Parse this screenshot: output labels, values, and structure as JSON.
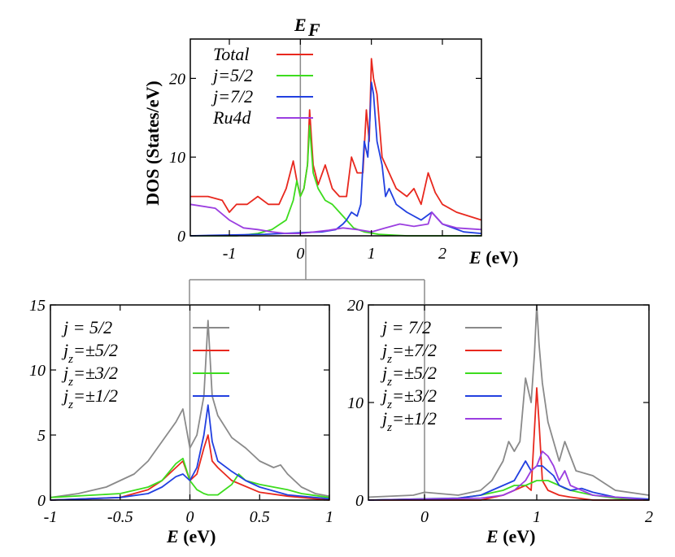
{
  "ef_label": "E",
  "ef_sub": "F",
  "chart_data": [
    {
      "type": "line",
      "xlabel": "E (eV)",
      "ylabel": "DOS (States/eV)",
      "xlim": [
        -1.55,
        2.55
      ],
      "ylim": [
        0,
        25
      ],
      "xticks": [
        "-1",
        "0",
        "1",
        "2"
      ],
      "yticks": [
        "0",
        "10",
        "20"
      ],
      "fermi_line": 0,
      "legend": "top-left",
      "series": [
        {
          "name": "Total",
          "color": "#e8281e",
          "x": [
            -1.55,
            -1.3,
            -1.1,
            -1.0,
            -0.9,
            -0.75,
            -0.6,
            -0.45,
            -0.3,
            -0.2,
            -0.1,
            -0.05,
            0.0,
            0.05,
            0.1,
            0.13,
            0.18,
            0.25,
            0.35,
            0.45,
            0.55,
            0.65,
            0.72,
            0.8,
            0.88,
            0.93,
            0.97,
            1.0,
            1.03,
            1.08,
            1.15,
            1.25,
            1.35,
            1.5,
            1.6,
            1.7,
            1.8,
            1.9,
            2.0,
            2.2,
            2.55
          ],
          "y": [
            5,
            5,
            4.5,
            3,
            4,
            4,
            5,
            4,
            4,
            6,
            9.5,
            7,
            5,
            6,
            9,
            16,
            9,
            6.5,
            9,
            6,
            5,
            5,
            10,
            8,
            8,
            16,
            12,
            22.5,
            20,
            18,
            10,
            8,
            6,
            5,
            6,
            4,
            8,
            5.5,
            4,
            3,
            2
          ]
        },
        {
          "name": "j=5/2",
          "color": "#3ddc1e",
          "x": [
            -1.55,
            -0.9,
            -0.6,
            -0.4,
            -0.2,
            -0.1,
            -0.05,
            0.0,
            0.05,
            0.1,
            0.13,
            0.18,
            0.25,
            0.35,
            0.45,
            0.55,
            0.65,
            0.75,
            0.9,
            1.1,
            1.5,
            2.55
          ],
          "y": [
            0,
            0,
            0.3,
            0.8,
            2,
            4.5,
            7,
            5,
            6,
            9,
            14,
            8,
            6,
            4.5,
            4,
            3,
            2,
            1,
            0.5,
            0.2,
            0,
            0
          ]
        },
        {
          "name": "j=7/2",
          "color": "#2240e0",
          "x": [
            -1.55,
            -0.5,
            0.0,
            0.3,
            0.5,
            0.6,
            0.65,
            0.72,
            0.8,
            0.85,
            0.9,
            0.95,
            0.98,
            1.0,
            1.03,
            1.08,
            1.15,
            1.2,
            1.25,
            1.35,
            1.5,
            1.7,
            1.85,
            2.0,
            2.3,
            2.55
          ],
          "y": [
            0,
            0.2,
            0.4,
            0.5,
            0.8,
            1.5,
            2,
            3,
            2.5,
            4,
            12,
            10,
            15,
            19.5,
            18,
            12,
            9,
            5,
            6,
            4,
            3,
            2,
            3,
            1.5,
            0.5,
            0.3
          ]
        },
        {
          "name": "Ru4d",
          "color": "#9b3ee0",
          "x": [
            -1.55,
            -1.2,
            -1.0,
            -0.8,
            -0.6,
            -0.4,
            -0.2,
            0.0,
            0.2,
            0.4,
            0.6,
            0.8,
            1.0,
            1.2,
            1.4,
            1.6,
            1.8,
            1.85,
            2.0,
            2.2,
            2.55
          ],
          "y": [
            4,
            3.5,
            2,
            1,
            0.8,
            0.5,
            0.3,
            0.3,
            0.5,
            0.7,
            1,
            0.8,
            0.5,
            1,
            1.5,
            1.2,
            1.5,
            3,
            1.5,
            1,
            0.8
          ]
        }
      ]
    },
    {
      "type": "line",
      "xlabel": "E (eV)",
      "xlim": [
        -1,
        1
      ],
      "ylim": [
        0,
        15
      ],
      "xticks": [
        "-1",
        "-0.5",
        "0",
        "0.5",
        "1"
      ],
      "yticks": [
        "0",
        "5",
        "10",
        "15"
      ],
      "fermi_line": 0,
      "legend": "top-left",
      "series": [
        {
          "name": "j = 5/2",
          "color": "#8a8a8a",
          "x": [
            -1,
            -0.8,
            -0.6,
            -0.4,
            -0.3,
            -0.2,
            -0.1,
            -0.05,
            0.0,
            0.05,
            0.1,
            0.13,
            0.16,
            0.2,
            0.3,
            0.4,
            0.5,
            0.6,
            0.65,
            0.7,
            0.8,
            0.9,
            1.0
          ],
          "y": [
            0.2,
            0.5,
            1,
            2,
            3,
            4.5,
            6,
            7,
            4,
            5,
            8,
            13.8,
            8,
            6.5,
            4.8,
            4,
            3,
            2.5,
            2.7,
            2,
            1,
            0.5,
            0.3
          ]
        },
        {
          "name": "j_z=±5/2",
          "color": "#e8281e",
          "x": [
            -1,
            -0.5,
            -0.3,
            -0.2,
            -0.1,
            -0.05,
            0.0,
            0.05,
            0.1,
            0.13,
            0.16,
            0.2,
            0.3,
            0.5,
            0.7,
            1.0
          ],
          "y": [
            0,
            0.2,
            0.8,
            1.5,
            2.5,
            3,
            1.5,
            2,
            4,
            5,
            3,
            2.5,
            1.5,
            0.6,
            0.3,
            0
          ]
        },
        {
          "name": "j_z=±3/2",
          "color": "#3ddc1e",
          "x": [
            -1,
            -0.5,
            -0.3,
            -0.2,
            -0.1,
            -0.05,
            0.0,
            0.05,
            0.1,
            0.13,
            0.2,
            0.3,
            0.35,
            0.4,
            0.5,
            0.6,
            0.7,
            0.8,
            1.0
          ],
          "y": [
            0.2,
            0.5,
            1,
            1.5,
            2.8,
            3.2,
            1.5,
            0.8,
            0.5,
            0.4,
            0.4,
            1.2,
            2,
            1.5,
            1.2,
            1,
            0.8,
            0.5,
            0.2
          ]
        },
        {
          "name": "j_z=±1/2",
          "color": "#2240e0",
          "x": [
            -1,
            -0.5,
            -0.3,
            -0.2,
            -0.1,
            -0.05,
            0.0,
            0.05,
            0.1,
            0.13,
            0.16,
            0.2,
            0.3,
            0.4,
            0.5,
            0.7,
            1.0
          ],
          "y": [
            0,
            0.2,
            0.5,
            1,
            1.8,
            2,
            1.5,
            2.5,
            5,
            7.3,
            4.5,
            3,
            2.2,
            1.5,
            1,
            0.4,
            0.1
          ]
        }
      ]
    },
    {
      "type": "line",
      "xlabel": "E (eV)",
      "xlim": [
        -0.5,
        2
      ],
      "ylim": [
        0,
        20
      ],
      "xticks": [
        "0",
        "1",
        "2"
      ],
      "yticks": [
        "0",
        "10",
        "20"
      ],
      "fermi_line": 0,
      "legend": "top-left",
      "series": [
        {
          "name": "j = 7/2",
          "color": "#8a8a8a",
          "x": [
            -0.5,
            -0.1,
            0.0,
            0.3,
            0.5,
            0.6,
            0.7,
            0.75,
            0.8,
            0.85,
            0.9,
            0.95,
            0.98,
            1.0,
            1.02,
            1.05,
            1.1,
            1.15,
            1.2,
            1.25,
            1.35,
            1.5,
            1.7,
            2.0
          ],
          "y": [
            0.3,
            0.5,
            0.8,
            0.5,
            1,
            2,
            4,
            6,
            5,
            6,
            12.5,
            10,
            15,
            20,
            16,
            12,
            8,
            6,
            4,
            6,
            3,
            2.5,
            1,
            0.5
          ]
        },
        {
          "name": "j_z=±7/2",
          "color": "#e8281e",
          "x": [
            -0.5,
            0.5,
            0.7,
            0.8,
            0.9,
            0.95,
            1.0,
            1.02,
            1.05,
            1.1,
            1.2,
            1.3,
            1.5,
            2.0
          ],
          "y": [
            0,
            0,
            0.5,
            1,
            1.5,
            1,
            11.5,
            8,
            2,
            1,
            0.5,
            0.3,
            0,
            0
          ]
        },
        {
          "name": "j_z=±5/2",
          "color": "#3ddc1e",
          "x": [
            -0.5,
            0.3,
            0.5,
            0.7,
            0.8,
            0.9,
            1.0,
            1.1,
            1.2,
            1.25,
            1.3,
            1.5,
            1.7,
            2.0
          ],
          "y": [
            0,
            0.2,
            0.5,
            1,
            1.5,
            1.5,
            2,
            2,
            1.5,
            1.2,
            1,
            0.5,
            0.2,
            0
          ]
        },
        {
          "name": "j_z=±3/2",
          "color": "#2240e0",
          "x": [
            -0.5,
            0.3,
            0.5,
            0.6,
            0.7,
            0.8,
            0.85,
            0.9,
            0.95,
            1.0,
            1.05,
            1.1,
            1.15,
            1.2,
            1.3,
            1.4,
            1.5,
            1.7,
            2.0
          ],
          "y": [
            0,
            0.2,
            0.5,
            1,
            1.5,
            2,
            3,
            4,
            3,
            3.5,
            3.5,
            3,
            2.5,
            1.5,
            1,
            1.2,
            0.8,
            0.3,
            0.1
          ]
        },
        {
          "name": "j_z=±1/2",
          "color": "#9b3ee0",
          "x": [
            -0.5,
            0.5,
            0.7,
            0.8,
            0.9,
            0.95,
            1.0,
            1.05,
            1.1,
            1.15,
            1.2,
            1.25,
            1.3,
            1.4,
            1.5,
            1.7,
            2.0
          ],
          "y": [
            0,
            0.2,
            0.5,
            1,
            2,
            3,
            3.5,
            5,
            4.5,
            3.5,
            2,
            3,
            1.5,
            1,
            0.5,
            0.3,
            0
          ]
        }
      ]
    }
  ]
}
